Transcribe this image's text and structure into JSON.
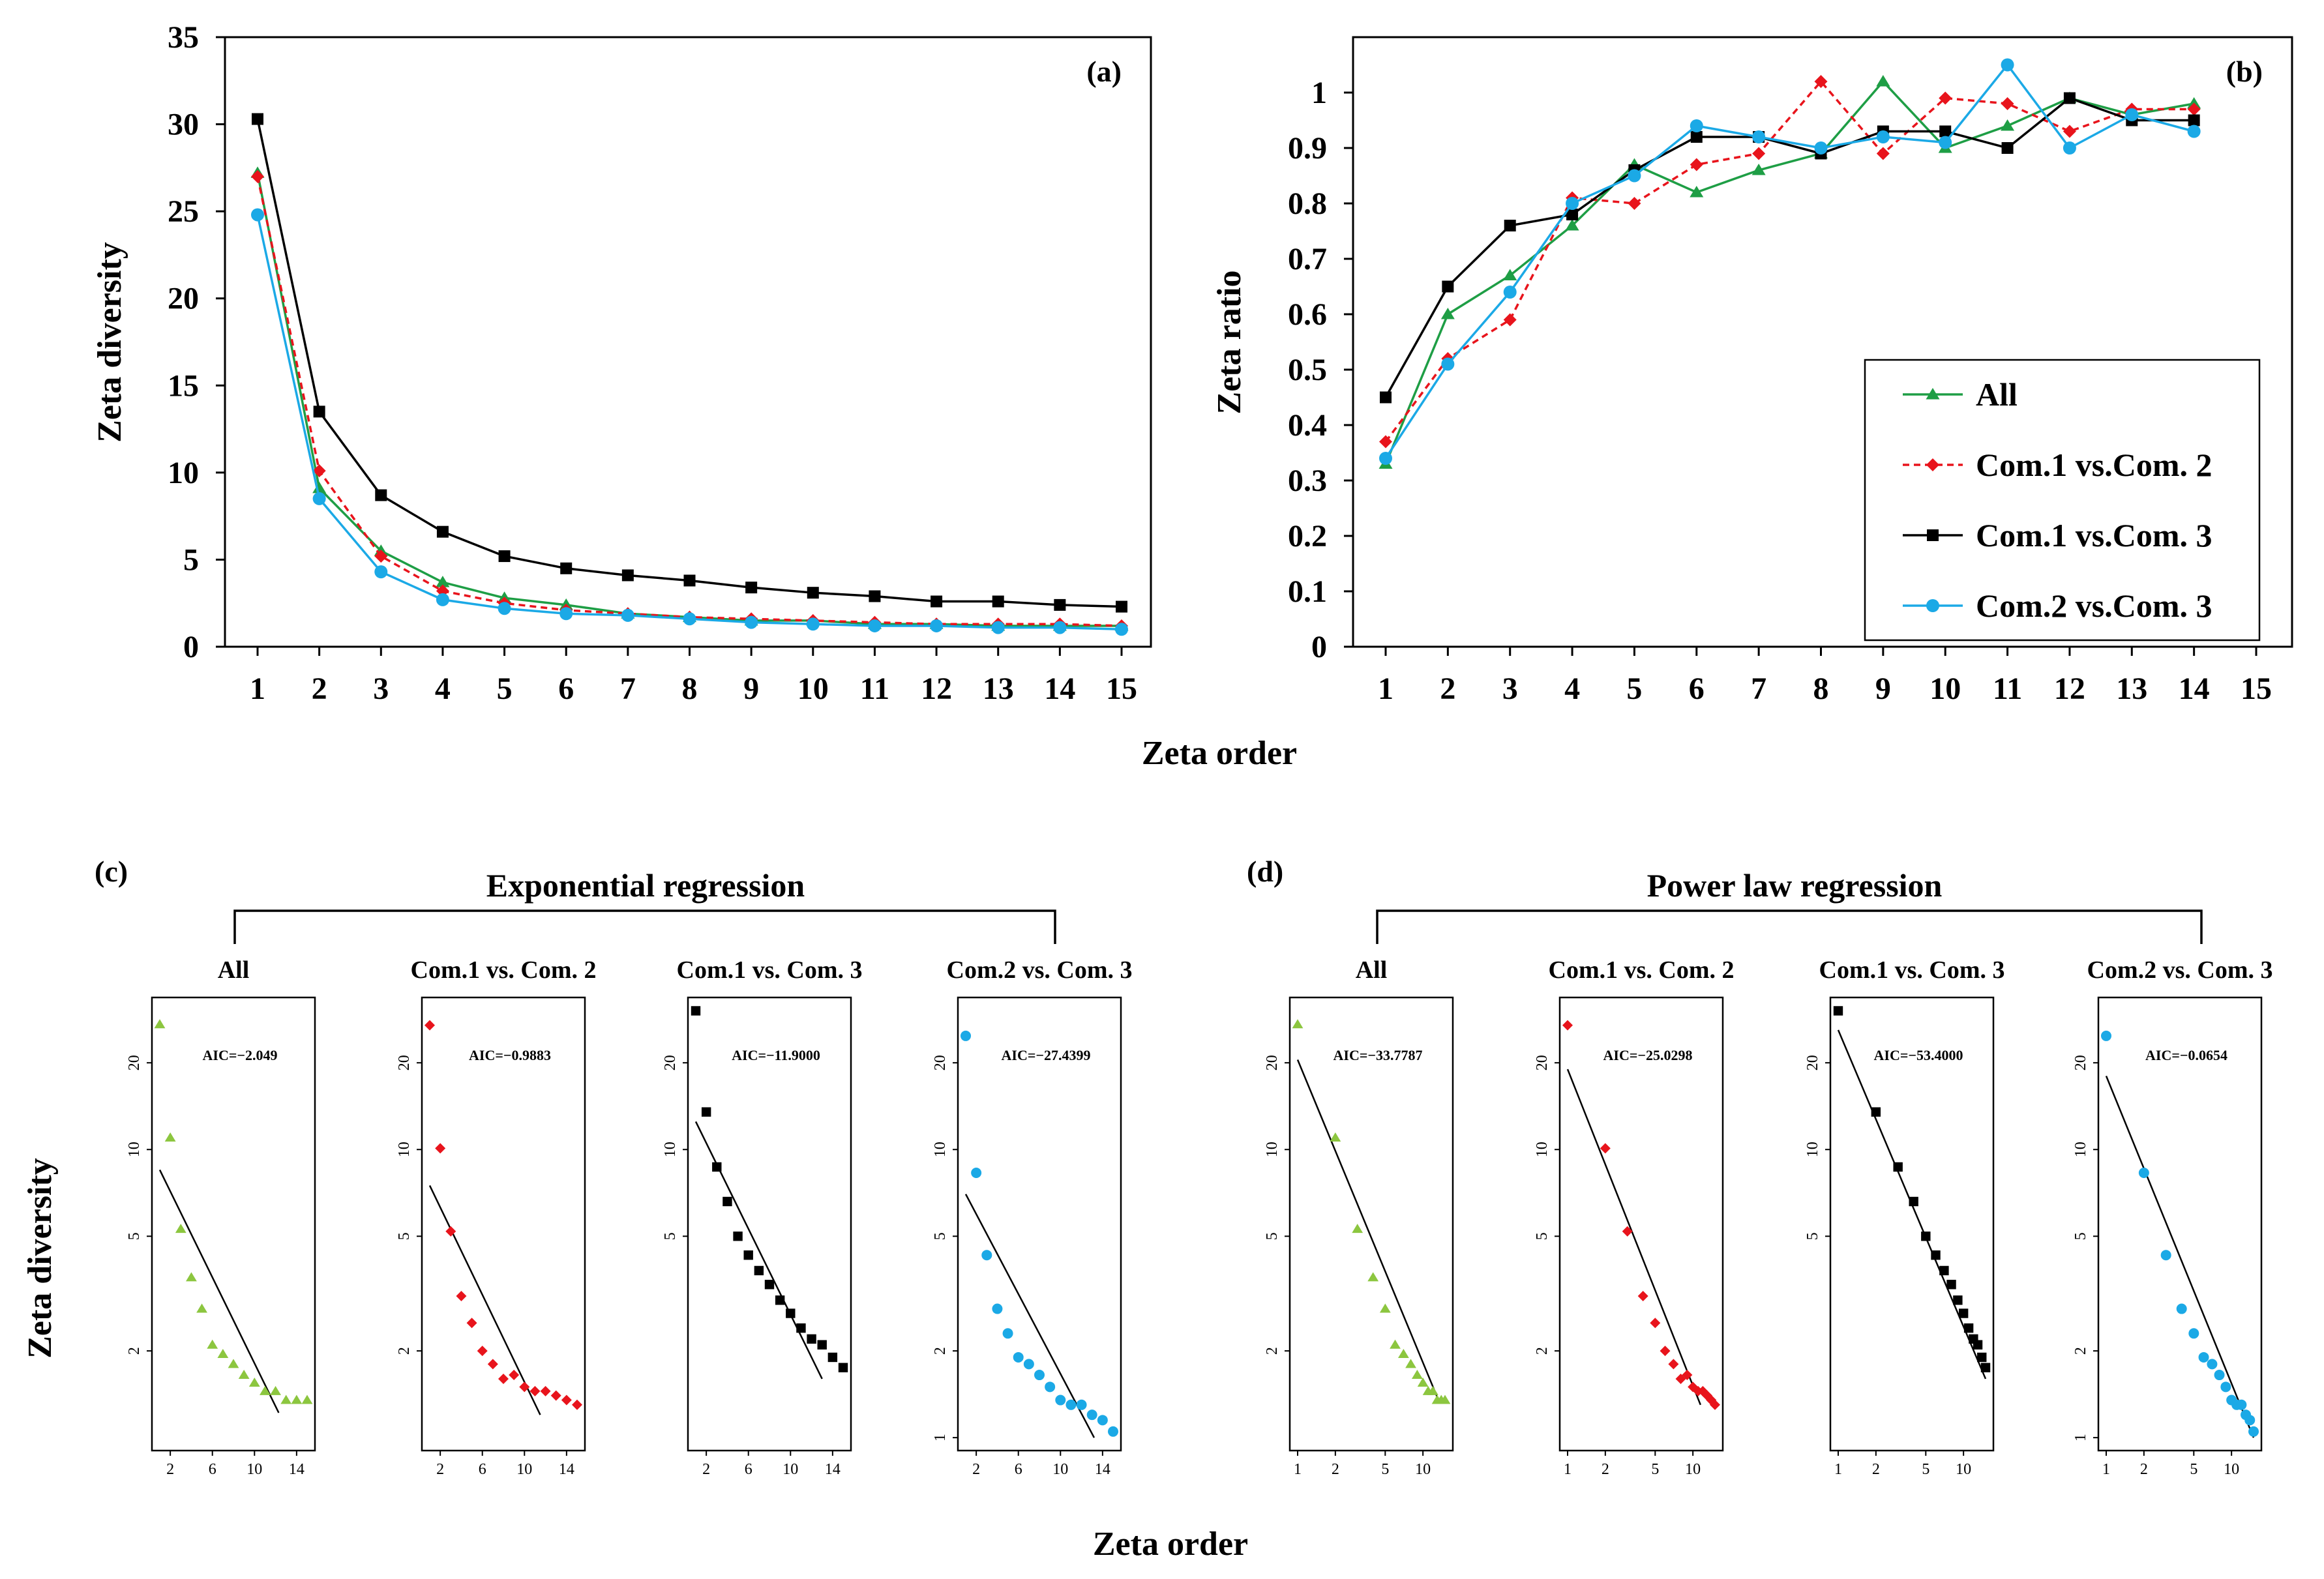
{
  "colors": {
    "all": "#1e9e45",
    "com12": "#e8141c",
    "com13": "#000000",
    "com23": "#1ba9e6",
    "small_all": "#8cc63f"
  },
  "chart_data": [
    {
      "id": "a",
      "type": "line",
      "panel_label": "(a)",
      "xlabel": "",
      "ylabel": "Zeta diversity",
      "x": [
        1,
        2,
        3,
        4,
        5,
        6,
        7,
        8,
        9,
        10,
        11,
        12,
        13,
        14,
        15
      ],
      "ylim": [
        0,
        35
      ],
      "yticks": [
        "0",
        "5",
        "10",
        "15",
        "20",
        "25",
        "30",
        "35"
      ],
      "series": [
        {
          "name": "All",
          "values": [
            27.2,
            9.1,
            5.5,
            3.7,
            2.8,
            2.4,
            1.9,
            1.7,
            1.5,
            1.5,
            1.3,
            1.3,
            1.2,
            1.2,
            1.2
          ]
        },
        {
          "name": "Com.1 vs.Com. 2",
          "values": [
            27.0,
            10.1,
            5.2,
            3.2,
            2.5,
            2.1,
            1.9,
            1.7,
            1.6,
            1.5,
            1.4,
            1.3,
            1.3,
            1.3,
            1.2
          ]
        },
        {
          "name": "Com.1 vs.Com. 3",
          "values": [
            30.3,
            13.5,
            8.7,
            6.6,
            5.2,
            4.5,
            4.1,
            3.8,
            3.4,
            3.1,
            2.9,
            2.6,
            2.6,
            2.4,
            2.3
          ]
        },
        {
          "name": "Com.2 vs.Com. 3",
          "values": [
            24.8,
            8.5,
            4.3,
            2.7,
            2.2,
            1.9,
            1.8,
            1.6,
            1.4,
            1.3,
            1.2,
            1.2,
            1.1,
            1.1,
            1.0
          ]
        }
      ]
    },
    {
      "id": "b",
      "type": "line",
      "panel_label": "(b)",
      "xlabel": "",
      "ylabel": "Zeta ratio",
      "x": [
        1,
        2,
        3,
        4,
        5,
        6,
        7,
        8,
        9,
        10,
        11,
        12,
        13,
        14
      ],
      "xlim": [
        1,
        15
      ],
      "ylim": [
        0,
        1.1
      ],
      "yticks": [
        "0",
        "0.1",
        "0.2",
        "0.3",
        "0.4",
        "0.5",
        "0.6",
        "0.7",
        "0.8",
        "0.9",
        "1"
      ],
      "legend_position": "bottom-right",
      "series": [
        {
          "name": "All",
          "values": [
            0.33,
            0.6,
            0.67,
            0.76,
            0.87,
            0.82,
            0.86,
            0.89,
            1.02,
            0.9,
            0.94,
            0.99,
            0.96,
            0.98
          ]
        },
        {
          "name": "Com.1 vs.Com. 2",
          "values": [
            0.37,
            0.52,
            0.59,
            0.81,
            0.8,
            0.87,
            0.89,
            1.02,
            0.89,
            0.99,
            0.98,
            0.93,
            0.97,
            0.97
          ]
        },
        {
          "name": "Com.1 vs.Com. 3",
          "values": [
            0.45,
            0.65,
            0.76,
            0.78,
            0.86,
            0.92,
            0.92,
            0.89,
            0.93,
            0.93,
            0.9,
            0.99,
            0.95,
            0.95
          ]
        },
        {
          "name": "Com.2 vs.Com. 3",
          "values": [
            0.34,
            0.51,
            0.64,
            0.8,
            0.85,
            0.94,
            0.92,
            0.9,
            0.92,
            0.91,
            1.05,
            0.9,
            0.96,
            0.93
          ]
        }
      ]
    },
    {
      "id": "c",
      "type": "scatter",
      "panel_label": "(c)",
      "group_title": "Exponential regression",
      "scale": "log-y",
      "xticks": [
        "2",
        "6",
        "10",
        "14"
      ],
      "panels": [
        {
          "title": "All",
          "aic": "AIC=−2.049",
          "color": "small_all",
          "marker": "triangle",
          "x": [
            1,
            2,
            3,
            4,
            5,
            6,
            7,
            8,
            9,
            10,
            11,
            12,
            13,
            14,
            15
          ],
          "y": [
            27.2,
            11,
            5.3,
            3.6,
            2.8,
            2.1,
            1.95,
            1.8,
            1.65,
            1.55,
            1.45,
            1.45,
            1.35,
            1.35,
            1.35
          ],
          "fit": [
            [
              1,
              8.5
            ],
            [
              12.3,
              1.22
            ]
          ],
          "yticks": [
            "2",
            "5",
            "10",
            "20"
          ]
        },
        {
          "title": "Com.1 vs. Com. 2",
          "aic": "AIC=−0.9883",
          "color": "com12",
          "marker": "diamond",
          "x": [
            1,
            2,
            3,
            4,
            5,
            6,
            7,
            8,
            9,
            10,
            11,
            12,
            13,
            14,
            15
          ],
          "y": [
            27,
            10.1,
            5.2,
            3.1,
            2.5,
            2.0,
            1.8,
            1.6,
            1.65,
            1.5,
            1.45,
            1.45,
            1.4,
            1.35,
            1.3
          ],
          "fit": [
            [
              1,
              7.5
            ],
            [
              11.5,
              1.2
            ]
          ],
          "yticks": [
            "2",
            "5",
            "10",
            "20"
          ]
        },
        {
          "title": "Com.1 vs. Com. 3",
          "aic": "AIC=−11.9000",
          "color": "com13",
          "marker": "square",
          "x": [
            1,
            2,
            3,
            4,
            5,
            6,
            7,
            8,
            9,
            10,
            11,
            12,
            13,
            14,
            15
          ],
          "y": [
            30.3,
            13.5,
            8.7,
            6.6,
            5.0,
            4.3,
            3.8,
            3.4,
            3.0,
            2.7,
            2.4,
            2.2,
            2.1,
            1.9,
            1.75
          ],
          "fit": [
            [
              1,
              12.5
            ],
            [
              13,
              1.6
            ]
          ],
          "yticks": [
            "5",
            "10",
            "20"
          ]
        },
        {
          "title": "Com.2 vs. Com. 3",
          "aic": "AIC=−27.4399",
          "color": "com23",
          "marker": "circle",
          "x": [
            1,
            2,
            3,
            4,
            5,
            6,
            7,
            8,
            9,
            10,
            11,
            12,
            13,
            14,
            15
          ],
          "y": [
            24.8,
            8.3,
            4.3,
            2.8,
            2.3,
            1.9,
            1.8,
            1.65,
            1.5,
            1.35,
            1.3,
            1.3,
            1.2,
            1.15,
            1.05
          ],
          "fit": [
            [
              1,
              7
            ],
            [
              13.2,
              1.0
            ]
          ],
          "yticks": [
            "1",
            "2",
            "5",
            "10",
            "20"
          ]
        }
      ]
    },
    {
      "id": "d",
      "type": "scatter",
      "panel_label": "(d)",
      "group_title": "Power law regression",
      "scale": "log-log",
      "xticks": [
        "1",
        "2",
        "5",
        "10"
      ],
      "panels": [
        {
          "title": "All",
          "aic": "AIC=−33.7787",
          "color": "small_all",
          "marker": "triangle",
          "x": [
            1,
            2,
            3,
            4,
            5,
            6,
            7,
            8,
            9,
            10,
            11,
            12,
            13,
            14,
            15
          ],
          "y": [
            27.2,
            11,
            5.3,
            3.6,
            2.8,
            2.1,
            1.95,
            1.8,
            1.65,
            1.55,
            1.45,
            1.45,
            1.35,
            1.35,
            1.35
          ],
          "fit": [
            [
              1,
              20.5
            ],
            [
              13.3,
              1.35
            ]
          ],
          "yticks": [
            "2",
            "5",
            "10",
            "20"
          ]
        },
        {
          "title": "Com.1 vs. Com. 2",
          "aic": "AIC=−25.0298",
          "color": "com12",
          "marker": "diamond",
          "x": [
            1,
            2,
            3,
            4,
            5,
            6,
            7,
            8,
            9,
            10,
            11,
            12,
            13,
            14,
            15
          ],
          "y": [
            27,
            10.1,
            5.2,
            3.1,
            2.5,
            2.0,
            1.8,
            1.6,
            1.65,
            1.5,
            1.45,
            1.45,
            1.4,
            1.35,
            1.3
          ],
          "fit": [
            [
              1,
              19
            ],
            [
              11.5,
              1.3
            ]
          ],
          "yticks": [
            "2",
            "5",
            "10",
            "20"
          ]
        },
        {
          "title": "Com.1 vs. Com. 3",
          "aic": "AIC=−53.4000",
          "color": "com13",
          "marker": "square",
          "x": [
            1,
            2,
            3,
            4,
            5,
            6,
            7,
            8,
            9,
            10,
            11,
            12,
            13,
            14,
            15
          ],
          "y": [
            30.3,
            13.5,
            8.7,
            6.6,
            5.0,
            4.3,
            3.8,
            3.4,
            3.0,
            2.7,
            2.4,
            2.2,
            2.1,
            1.9,
            1.75
          ],
          "fit": [
            [
              1,
              26
            ],
            [
              15,
              1.6
            ]
          ],
          "yticks": [
            "5",
            "10",
            "20"
          ]
        },
        {
          "title": "Com.2 vs. Com. 3",
          "aic": "AIC=−0.0654",
          "color": "com23",
          "marker": "circle",
          "x": [
            1,
            2,
            3,
            4,
            5,
            6,
            7,
            8,
            9,
            10,
            11,
            12,
            13,
            14,
            15
          ],
          "y": [
            24.8,
            8.3,
            4.3,
            2.8,
            2.3,
            1.9,
            1.8,
            1.65,
            1.5,
            1.35,
            1.3,
            1.3,
            1.2,
            1.15,
            1.05
          ],
          "fit": [
            [
              1,
              18
            ],
            [
              15,
              1.0
            ]
          ],
          "yticks": [
            "1",
            "2",
            "5",
            "10",
            "20"
          ]
        }
      ]
    }
  ],
  "shared": {
    "xlabel_top": "Zeta order",
    "xlabel_bottom": "Zeta order",
    "ylabel_bottom": "Zeta diversity"
  }
}
